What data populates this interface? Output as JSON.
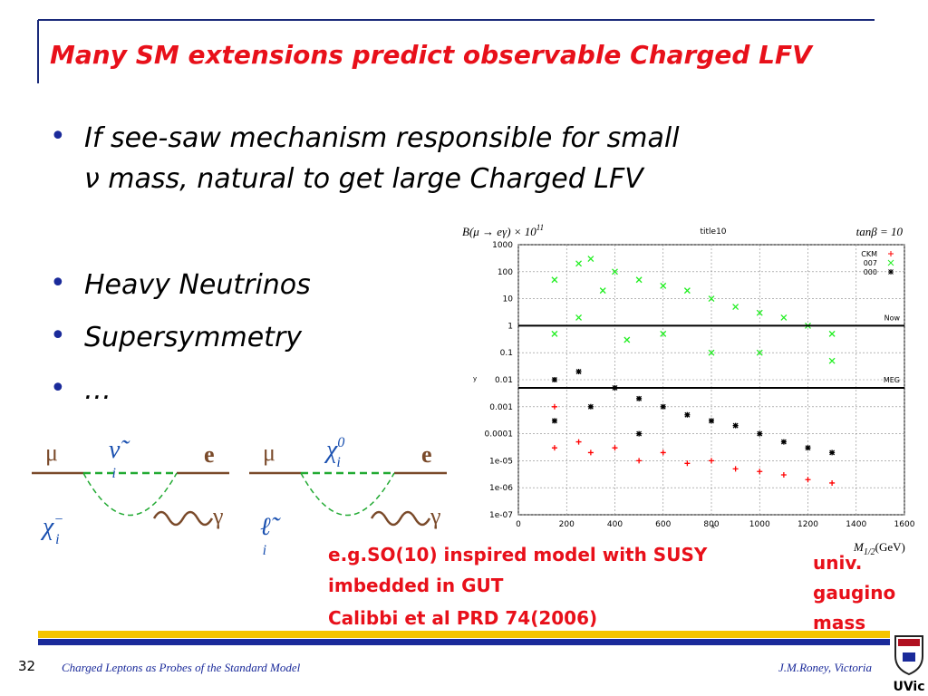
{
  "title": "Many SM extensions predict observable Charged LFV",
  "bullets": [
    [
      "If see-saw mechanism responsible for small",
      "ν mass, natural to get large Charged LFV"
    ],
    [
      "Heavy Neutrinos"
    ],
    [
      "Supersymmetry"
    ],
    [
      "…"
    ]
  ],
  "diagrams": [
    {
      "in": "μ",
      "internal": "ν̃",
      "internal_sub": "i",
      "internal_sup": "",
      "out": "e",
      "loop": "χ",
      "loop_sub": "i",
      "loop_sup": "−",
      "photon": "γ"
    },
    {
      "in": "μ",
      "internal": "χ",
      "internal_sub": "i",
      "internal_sup": "0",
      "out": "e",
      "loop": "ℓ̃",
      "loop_sub": "i",
      "loop_sup": "",
      "photon": "γ"
    }
  ],
  "chart_data": {
    "type": "scatter",
    "y_title": "B(μ → eγ) × 10",
    "y_title_exp": "11",
    "title": "title10",
    "corner_label": "tanβ = 10",
    "xlabel": "x",
    "ylabel": "y",
    "x_unit_label": "M",
    "x_unit_sub": "1/2",
    "x_unit_tail": "(GeV)",
    "log_y": true,
    "grid": true,
    "legend": "upper right",
    "xlim": [
      0,
      1600
    ],
    "ylim": [
      1e-07,
      1000
    ],
    "xticks": [
      0,
      200,
      400,
      600,
      800,
      1000,
      1200,
      1400,
      1600
    ],
    "yticks": [
      1000,
      100,
      10,
      1,
      0.1,
      0.01,
      0.001,
      0.0001,
      {
        "value": 1e-05,
        "label": "1e-05"
      },
      {
        "value": 1e-06,
        "label": "1e-06"
      },
      {
        "value": 1e-07,
        "label": "1e-07"
      }
    ],
    "hlines": [
      {
        "value": 1,
        "label": "Now"
      },
      {
        "value": 0.005,
        "label": "MEG"
      }
    ],
    "series": [
      {
        "name": "CKM",
        "color": "#ff0000",
        "marker": "+",
        "x": [
          150,
          150,
          250,
          300,
          400,
          500,
          600,
          700,
          800,
          900,
          1000,
          1100,
          1200,
          1300
        ],
        "values": [
          0.001,
          3e-05,
          5e-05,
          2e-05,
          3e-05,
          1e-05,
          2e-05,
          8e-06,
          1e-05,
          5e-06,
          4e-06,
          3e-06,
          2e-06,
          1.5e-06
        ]
      },
      {
        "name": "007",
        "color": "#22ee22",
        "marker": "x",
        "x": [
          150,
          150,
          250,
          250,
          300,
          350,
          400,
          450,
          500,
          600,
          600,
          700,
          800,
          800,
          900,
          1000,
          1000,
          1100,
          1200,
          1300,
          1300
        ],
        "values": [
          50,
          0.5,
          200,
          2,
          300,
          20,
          100,
          0.3,
          50,
          30,
          0.5,
          20,
          10,
          0.1,
          5,
          3,
          0.1,
          2,
          1,
          0.5,
          0.05
        ]
      },
      {
        "name": "000",
        "color": "#000000",
        "marker": "*",
        "x": [
          150,
          150,
          250,
          300,
          400,
          500,
          500,
          600,
          700,
          800,
          900,
          1000,
          1100,
          1200,
          1300
        ],
        "values": [
          0.01,
          0.0003,
          0.02,
          0.001,
          0.005,
          0.002,
          0.0001,
          0.001,
          0.0005,
          0.0003,
          0.0002,
          0.0001,
          5e-05,
          3e-05,
          2e-05
        ]
      }
    ]
  },
  "note": [
    "e.g.SO(10) inspired model with SUSY",
    "imbedded in GUT",
    "Calibbi et al PRD 74(2006)"
  ],
  "side_note": [
    "univ.",
    "gaugino",
    "mass"
  ],
  "footer": {
    "page": "32",
    "left": "Charged Leptons as Probes of the Standard Model",
    "right": "J.M.Roney, Victoria",
    "logo": "UVic"
  }
}
